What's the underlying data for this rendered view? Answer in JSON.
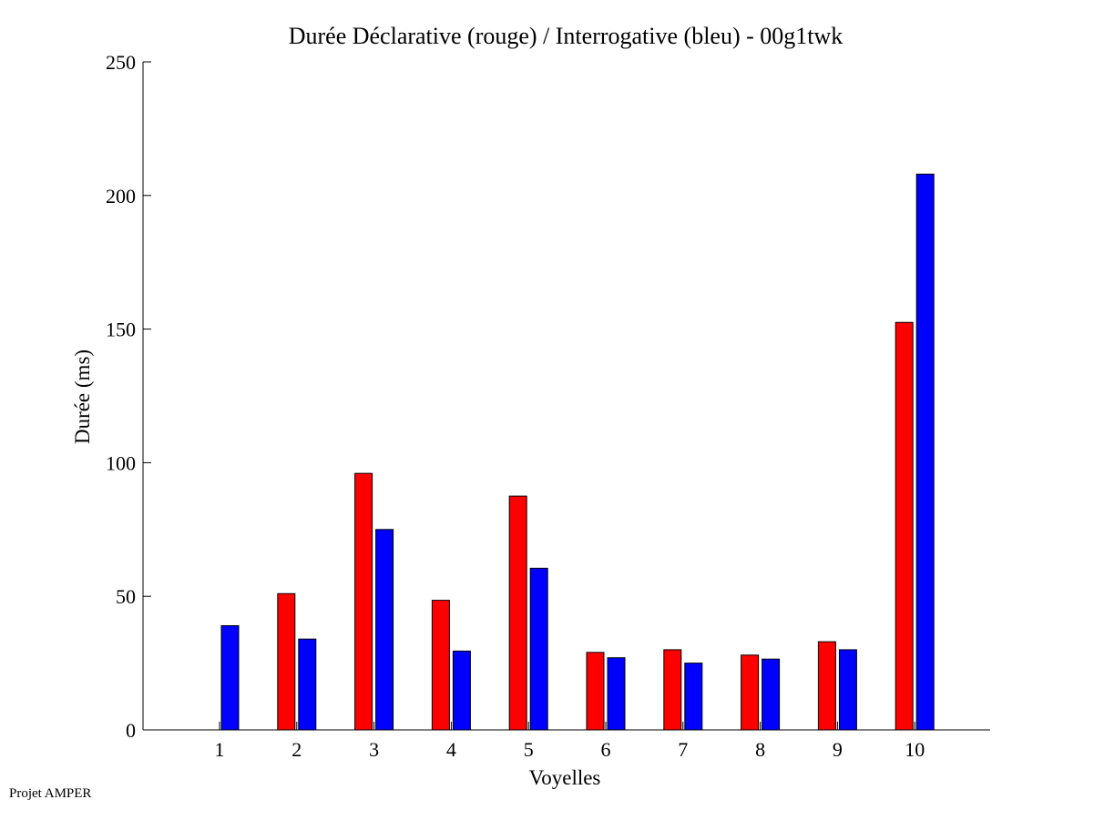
{
  "chart_data": {
    "type": "bar",
    "title": "Durée Déclarative (rouge) / Interrogative (bleu) - 00g1twk",
    "xlabel": "Voyelles",
    "ylabel": "Durée (ms)",
    "categories": [
      "1",
      "2",
      "3",
      "4",
      "5",
      "6",
      "7",
      "8",
      "9",
      "10"
    ],
    "ylim": [
      0,
      250
    ],
    "yticks": [
      "0",
      "50",
      "100",
      "150",
      "200",
      "250"
    ],
    "grid": false,
    "series": [
      {
        "color": "#ff0000",
        "values": [
          0,
          51,
          96,
          48.5,
          87.5,
          29,
          30,
          28,
          33,
          152.5
        ]
      },
      {
        "color": "#0000ff",
        "values": [
          39,
          34,
          75,
          29.5,
          60.5,
          27,
          25,
          26.5,
          30,
          208
        ]
      }
    ]
  },
  "footer": {
    "label": "Projet AMPER"
  }
}
